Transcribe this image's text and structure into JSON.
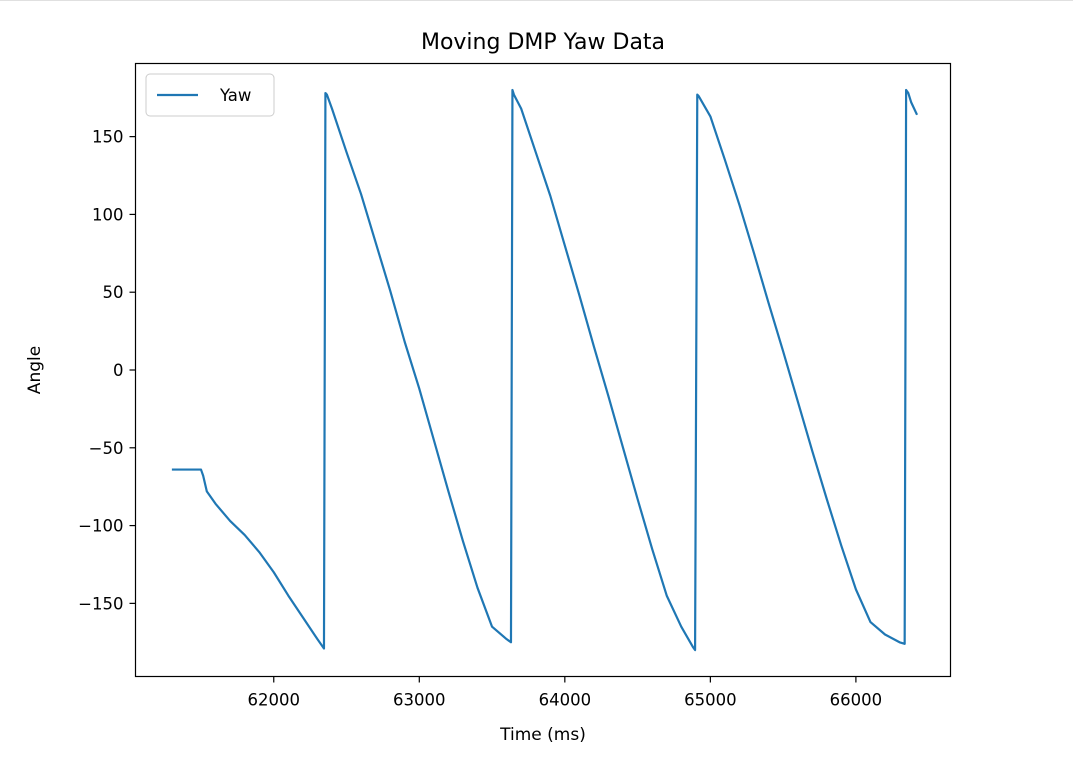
{
  "chart_data": {
    "type": "line",
    "title": "Moving DMP Yaw Data",
    "xlabel": "Time (ms)",
    "ylabel": "Angle",
    "xlim": [
      61050,
      66650
    ],
    "ylim": [
      -197,
      197
    ],
    "xticks": [
      62000,
      63000,
      64000,
      65000,
      66000
    ],
    "xtick_labels": [
      "62000",
      "63000",
      "64000",
      "65000",
      "66000"
    ],
    "yticks": [
      150,
      100,
      50,
      0,
      -50,
      -100,
      -150
    ],
    "ytick_labels": [
      "150",
      "100",
      "50",
      "0",
      "−50",
      "−100",
      "−150"
    ],
    "legend_position": "top-left",
    "grid": false,
    "color": "#1f77b4",
    "series": [
      {
        "name": "Yaw",
        "x": [
          61300,
          61500,
          61515,
          61540,
          61600,
          61700,
          61800,
          61900,
          62000,
          62100,
          62200,
          62300,
          62345,
          62355,
          62365,
          62400,
          62500,
          62600,
          62700,
          62800,
          62900,
          63000,
          63100,
          63200,
          63300,
          63400,
          63500,
          63600,
          63630,
          63640,
          63650,
          63700,
          63800,
          63900,
          64000,
          64100,
          64200,
          64300,
          64400,
          64500,
          64600,
          64700,
          64800,
          64880,
          64895,
          64910,
          64920,
          65000,
          65100,
          65200,
          65300,
          65400,
          65500,
          65600,
          65700,
          65800,
          65900,
          66000,
          66100,
          66200,
          66300,
          66335,
          66345,
          66360,
          66380,
          66420
        ],
        "y": [
          -64,
          -64,
          -68,
          -78,
          -86,
          -97,
          -106,
          -117,
          -130,
          -145,
          -159,
          -173,
          -179,
          178,
          177,
          168,
          140,
          113,
          82,
          51,
          18,
          -12,
          -45,
          -78,
          -110,
          -140,
          -165,
          -173,
          -175,
          180,
          177,
          168,
          140,
          112,
          80,
          48,
          15,
          -17,
          -50,
          -83,
          -115,
          -145,
          -165,
          -178,
          -180,
          177,
          176,
          163,
          135,
          106,
          75,
          43,
          12,
          -20,
          -52,
          -83,
          -113,
          -141,
          -162,
          -170,
          -175,
          -176,
          180,
          178,
          172,
          164
        ]
      }
    ]
  }
}
